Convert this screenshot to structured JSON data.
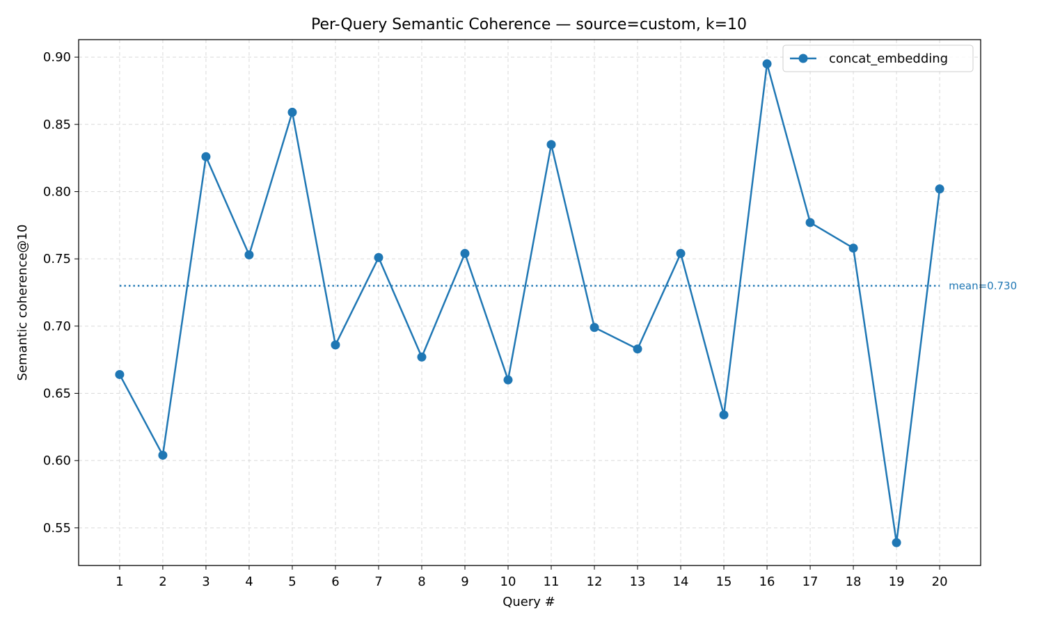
{
  "chart_data": {
    "type": "line",
    "title": "Per-Query Semantic Coherence — source=custom, k=10",
    "xlabel": "Query #",
    "ylabel": "Semantic coherence@10",
    "x": [
      1,
      2,
      3,
      4,
      5,
      6,
      7,
      8,
      9,
      10,
      11,
      12,
      13,
      14,
      15,
      16,
      17,
      18,
      19,
      20
    ],
    "series": [
      {
        "name": "concat_embedding",
        "color": "#1f77b4",
        "values": [
          0.664,
          0.604,
          0.826,
          0.753,
          0.859,
          0.686,
          0.751,
          0.677,
          0.754,
          0.66,
          0.835,
          0.699,
          0.683,
          0.754,
          0.634,
          0.895,
          0.777,
          0.758,
          0.539,
          0.802
        ]
      }
    ],
    "mean": {
      "value": 0.73,
      "label": "mean=0.730"
    },
    "ylim": [
      0.522,
      0.913
    ],
    "xlim": [
      0.05,
      20.95
    ],
    "yticks": [
      0.55,
      0.6,
      0.65,
      0.7,
      0.75,
      0.8,
      0.85,
      0.9
    ],
    "ytick_labels": [
      "0.55",
      "0.60",
      "0.65",
      "0.70",
      "0.75",
      "0.80",
      "0.85",
      "0.90"
    ],
    "xtick_labels": [
      "1",
      "2",
      "3",
      "4",
      "5",
      "6",
      "7",
      "8",
      "9",
      "10",
      "11",
      "12",
      "13",
      "14",
      "15",
      "16",
      "17",
      "18",
      "19",
      "20"
    ],
    "grid": true,
    "legend_position": "top-right"
  }
}
